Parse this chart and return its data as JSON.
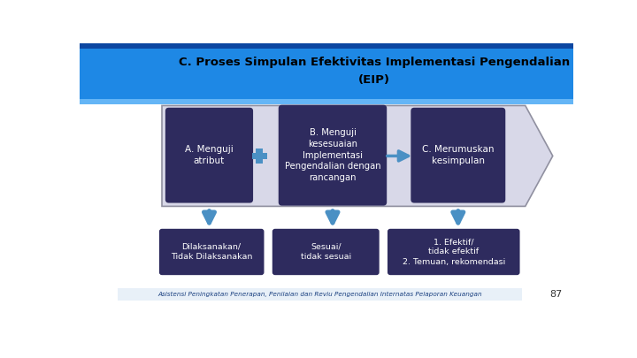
{
  "title_line1": "C. Proses Simpulan Efektivitas Implementasi Pengendalian",
  "title_line2": "(EIP)",
  "title_color": "#000000",
  "header_bg_color": "#1E88E5",
  "header_stripe_color": "#0D47A1",
  "box_color": "#2E2B5E",
  "box_texts": [
    "A. Menguji\natribut",
    "B. Menguji\nkesesuaian\nImplementasi\nPengendalian dengan\nrancangan",
    "C. Merumuskan\nkesimpulan"
  ],
  "bottom_box_color": "#2E2B5E",
  "bottom_texts": [
    "Dilaksanakan/\nTidak Dilaksanakan",
    "Sesuai/\ntidak sesuai",
    "1. Efektif/\ntidak efektif\n2. Temuan, rekomendasi"
  ],
  "footer_text": "Asistensi Peningkatan Penerapan, Penilaian dan Reviu Pengendalian Internatas Pelaporan Keuangan",
  "page_number": "87",
  "box_text_color": "#FFFFFF",
  "bg_color": "#FFFFFF",
  "panel_bg": "#D8D8E8",
  "connector_color": "#4A90C4",
  "bottom_arrow_color": "#4A90C4",
  "footer_bg": "#E8F0F8",
  "panel_border": "#9090A0"
}
